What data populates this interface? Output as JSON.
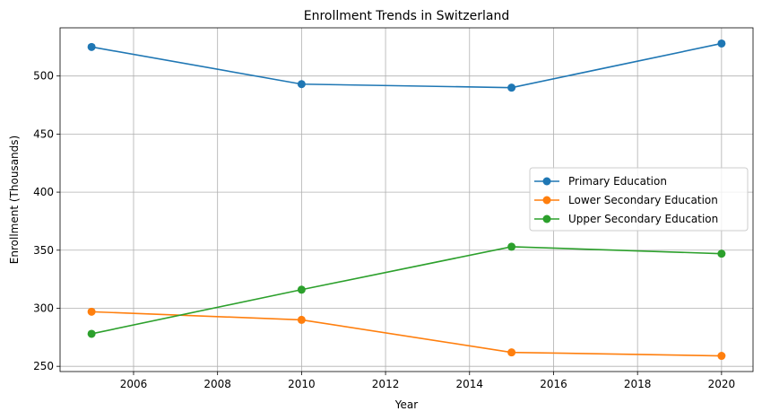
{
  "chart_data": {
    "type": "line",
    "title": "Enrollment Trends in Switzerland",
    "xlabel": "Year",
    "ylabel": "Enrollment (Thousands)",
    "x": [
      2005,
      2010,
      2015,
      2020
    ],
    "xlim": [
      2004.25,
      2020.75
    ],
    "ylim": [
      245.5,
      541.5
    ],
    "xticks": [
      2006,
      2008,
      2010,
      2012,
      2014,
      2016,
      2018,
      2020
    ],
    "yticks": [
      250,
      300,
      350,
      400,
      450,
      500
    ],
    "grid": true,
    "legend_position": "center-right",
    "series": [
      {
        "name": "Primary Education",
        "color": "#1f77b4",
        "values": [
          525,
          493,
          490,
          528
        ]
      },
      {
        "name": "Lower Secondary Education",
        "color": "#ff7f0e",
        "values": [
          297,
          290,
          262,
          259
        ]
      },
      {
        "name": "Upper Secondary Education",
        "color": "#2ca02c",
        "values": [
          278,
          316,
          353,
          347
        ]
      }
    ]
  }
}
